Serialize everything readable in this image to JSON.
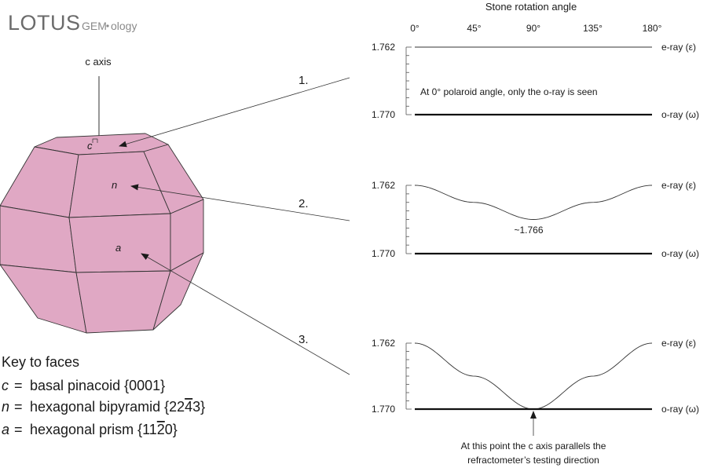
{
  "logo": {
    "main": "LOTUS",
    "sub1": "GEM",
    "sub2": "ology"
  },
  "crystal": {
    "c_axis_label": "c axis",
    "face_c": "c",
    "face_n": "n",
    "face_a": "a",
    "face_color": "#e0a8c4",
    "edge_color": "#333333"
  },
  "callouts": [
    "1.",
    "2.",
    "3."
  ],
  "key": {
    "title": "Key to faces",
    "items": [
      {
        "symbol": "c",
        "eq": "=",
        "text": "basal pinacoid {0001}"
      },
      {
        "symbol": "n",
        "eq": "=",
        "text": "hexagonal bipyramid {22",
        "overbar": "4",
        "after": "3}"
      },
      {
        "symbol": "a",
        "eq": "=",
        "text": "hexagonal prism {11",
        "overbar": "2",
        "after": "0}"
      }
    ]
  },
  "top_axis": {
    "title": "Stone rotation angle",
    "ticks": [
      "0°",
      "45°",
      "90°",
      "135°",
      "180°"
    ]
  },
  "chart_data": [
    {
      "type": "line",
      "panel": "1.",
      "x": [
        0,
        45,
        90,
        135,
        180
      ],
      "ylim": [
        1.77,
        1.762
      ],
      "y_ticks": [
        "1.762",
        "1.770"
      ],
      "series": [
        {
          "name": "e-ray (ε)",
          "values": [
            1.762,
            1.762,
            1.762,
            1.762,
            1.762
          ]
        },
        {
          "name": "o-ray (ω)",
          "values": [
            1.77,
            1.77,
            1.77,
            1.77,
            1.77
          ]
        }
      ],
      "annotation": "At 0° polaroid angle, only the o-ray is seen"
    },
    {
      "type": "line",
      "panel": "2.",
      "x": [
        0,
        45,
        90,
        135,
        180
      ],
      "ylim": [
        1.77,
        1.762
      ],
      "y_ticks": [
        "1.762",
        "1.770"
      ],
      "series": [
        {
          "name": "e-ray (ε)",
          "values": [
            1.762,
            1.764,
            1.766,
            1.764,
            1.762
          ]
        },
        {
          "name": "o-ray (ω)",
          "values": [
            1.77,
            1.77,
            1.77,
            1.77,
            1.77
          ]
        }
      ],
      "annotation": "~1.766"
    },
    {
      "type": "line",
      "panel": "3.",
      "x": [
        0,
        45,
        90,
        135,
        180
      ],
      "ylim": [
        1.77,
        1.762
      ],
      "y_ticks": [
        "1.762",
        "1.770"
      ],
      "series": [
        {
          "name": "e-ray (ε)",
          "values": [
            1.762,
            1.766,
            1.77,
            1.766,
            1.762
          ]
        },
        {
          "name": "o-ray (ω)",
          "values": [
            1.77,
            1.77,
            1.77,
            1.77,
            1.77
          ]
        }
      ],
      "annotation": [
        "At this point the c axis parallels the",
        "refractometer’s testing direction"
      ]
    }
  ]
}
